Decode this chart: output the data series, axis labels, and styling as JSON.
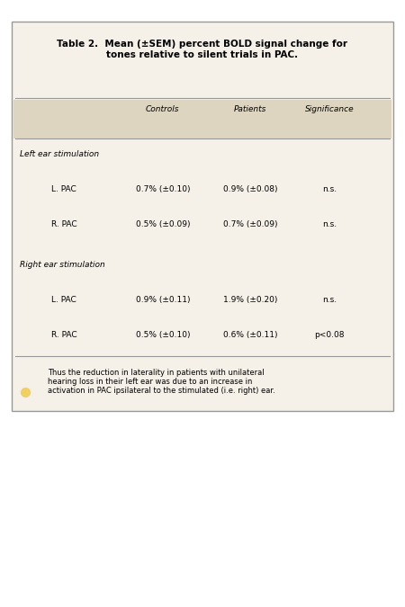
{
  "title": "Table 2.  Mean (±SEM) percent BOLD signal change for\ntones relative to silent trials in PAC.",
  "columns": [
    "Controls",
    "Patients",
    "Significance"
  ],
  "sections": [
    {
      "label": "Left ear stimulation",
      "rows": [
        {
          "label": "L. PAC",
          "controls": "0.7% (±0.10)",
          "patients": "0.9% (±0.08)",
          "sig": "n.s."
        },
        {
          "label": "R. PAC",
          "controls": "0.5% (±0.09)",
          "patients": "0.7% (±0.09)",
          "sig": "n.s."
        }
      ]
    },
    {
      "label": "Right ear stimulation",
      "rows": [
        {
          "label": "L. PAC",
          "controls": "0.9% (±0.11)",
          "patients": "1.9% (±0.20)",
          "sig": "n.s."
        },
        {
          "label": "R. PAC",
          "controls": "0.5% (±0.10)",
          "patients": "0.6% (±0.11)",
          "sig": "p<0.08"
        }
      ]
    }
  ],
  "note": "Thus the reduction in laterality in patients with unilateral\nhearing loss in their left ear was due to an increase in\nactivation in PAC ipsilateral to the stimulated (i.e. right) ear.",
  "bg_color": "#f5f0e8",
  "header_bg": "#ddd5c0",
  "border_color": "#999999",
  "title_fontsize": 7.5,
  "body_fontsize": 6.5,
  "note_fontsize": 6.0,
  "note_bullet_color": "#f0d060"
}
